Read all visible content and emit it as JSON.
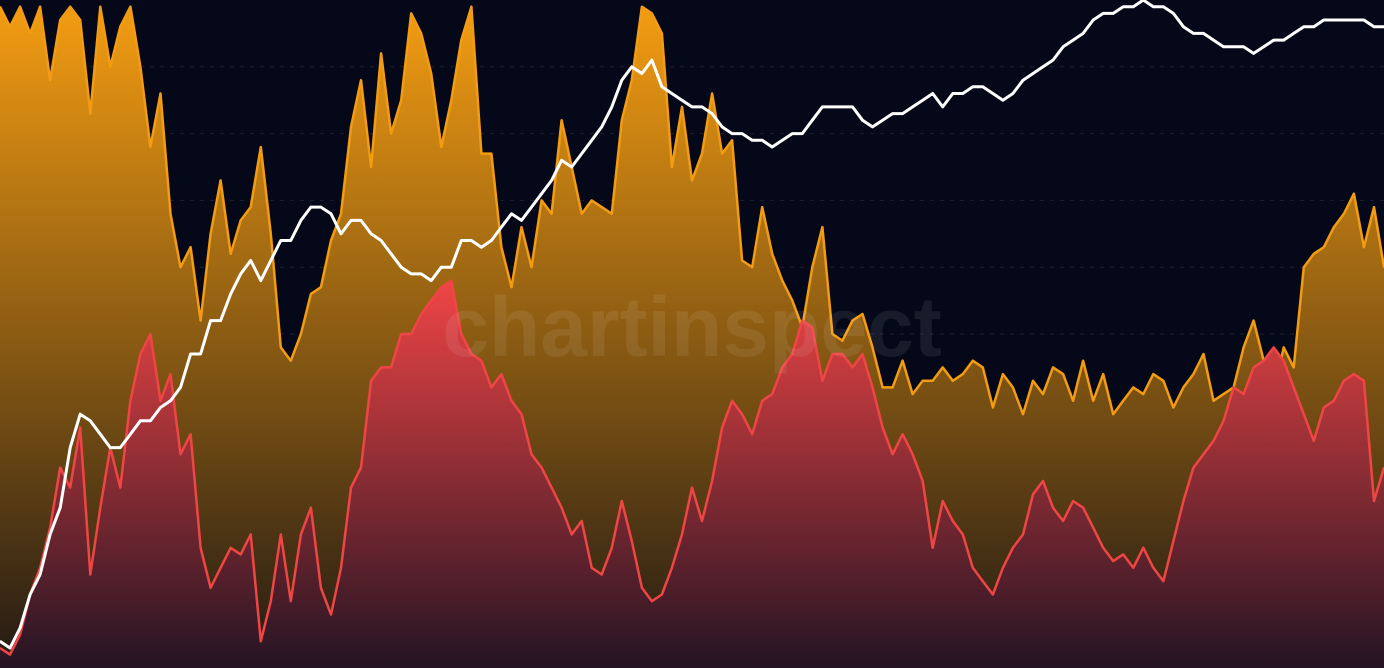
{
  "watermark": "chartinspect",
  "chart_data": {
    "type": "area",
    "title": "",
    "xlabel": "",
    "ylabel": "",
    "x": [
      0,
      10,
      20,
      30,
      40,
      50,
      60,
      70,
      80,
      90,
      100,
      110,
      120,
      130,
      140,
      150,
      160,
      170,
      180,
      190,
      200,
      210,
      220,
      230,
      240,
      250,
      260,
      270,
      280,
      290,
      300,
      310,
      320,
      330,
      340,
      350,
      360,
      370,
      380,
      390,
      400,
      410,
      420,
      430,
      440,
      450,
      460,
      470,
      480,
      490,
      500,
      510,
      520,
      530,
      540,
      550,
      560,
      570,
      580,
      590,
      600,
      610,
      620,
      630,
      640,
      650,
      660,
      670,
      680,
      690,
      700,
      710,
      720,
      730,
      740,
      750,
      760,
      770,
      780,
      790,
      800,
      810,
      820,
      830,
      840,
      850,
      860,
      870,
      880,
      890,
      900,
      910,
      920,
      930,
      940,
      950,
      960,
      970,
      980,
      990,
      1000,
      1010,
      1020,
      1030,
      1040,
      1050,
      1060,
      1070,
      1080,
      1090,
      1100,
      1110,
      1120,
      1130,
      1140,
      1150,
      1160,
      1170,
      1180,
      1190,
      1200,
      1210,
      1220,
      1230,
      1240,
      1250,
      1260,
      1270,
      1280,
      1290,
      1300,
      1310,
      1320,
      1330,
      1340,
      1350,
      1360,
      1370,
      1380
    ],
    "ylim": [
      0,
      100
    ],
    "grid": true,
    "legend": "none",
    "series": [
      {
        "color": "#f39c12",
        "fill_top": "#f39c12",
        "fill_bottom": "#221a14",
        "values": [
          99,
          96,
          99,
          95,
          99,
          88,
          97,
          99,
          97,
          83,
          99,
          90,
          96,
          99,
          90,
          78,
          86,
          68,
          60,
          63,
          52,
          65,
          73,
          62,
          67,
          69,
          78,
          65,
          48,
          46,
          50,
          56,
          57,
          64,
          68,
          81,
          88,
          75,
          92,
          80,
          85,
          98,
          95,
          89,
          78,
          85,
          94,
          99,
          77,
          77,
          63,
          57,
          66,
          60,
          70,
          68,
          82,
          75,
          68,
          70,
          69,
          68,
          82,
          88,
          99,
          98,
          95,
          75,
          84,
          73,
          77,
          86,
          77,
          79,
          61,
          60,
          69,
          62,
          58,
          55,
          51,
          60,
          66,
          50,
          49,
          52,
          53,
          48,
          42,
          42,
          46,
          41,
          43,
          43,
          45,
          43,
          44,
          46,
          45,
          39,
          44,
          42,
          38,
          43,
          41,
          45,
          44,
          40,
          46,
          40,
          44,
          38,
          40,
          42,
          41,
          44,
          43,
          39,
          42,
          44,
          47,
          40,
          41,
          42,
          48,
          52,
          46,
          41,
          48,
          45,
          60,
          62,
          63,
          66,
          68,
          71,
          63,
          69,
          60
        ]
      },
      {
        "color": "#f04545",
        "fill_top": "#f04545",
        "fill_bottom": "#241423",
        "values": [
          3,
          2,
          5,
          11,
          15,
          21,
          30,
          27,
          36,
          14,
          24,
          33,
          27,
          40,
          47,
          50,
          40,
          44,
          32,
          35,
          18,
          12,
          15,
          18,
          17,
          20,
          4,
          10,
          20,
          10,
          20,
          24,
          12,
          8,
          15,
          27,
          30,
          43,
          45,
          45,
          50,
          50,
          53,
          55,
          57,
          58,
          50,
          47,
          46,
          42,
          44,
          40,
          38,
          32,
          30,
          27,
          24,
          20,
          22,
          15,
          14,
          18,
          25,
          19,
          12,
          10,
          11,
          15,
          20,
          27,
          22,
          28,
          36,
          40,
          38,
          35,
          40,
          41,
          45,
          47,
          52,
          51,
          43,
          47,
          47,
          45,
          47,
          42,
          36,
          32,
          35,
          32,
          28,
          18,
          25,
          22,
          20,
          15,
          13,
          11,
          15,
          18,
          20,
          26,
          28,
          24,
          22,
          25,
          24,
          21,
          18,
          16,
          17,
          15,
          18,
          15,
          13,
          19,
          25,
          30,
          32,
          34,
          37,
          42,
          41,
          45,
          46,
          48,
          46,
          42,
          38,
          34,
          39,
          40,
          43,
          44,
          43,
          25,
          30
        ]
      },
      {
        "color": "#ffffff",
        "values": [
          4,
          3,
          6,
          11,
          14,
          20,
          24,
          33,
          38,
          37,
          35,
          33,
          33,
          35,
          37,
          37,
          39,
          40,
          42,
          47,
          47,
          52,
          52,
          56,
          59,
          61,
          58,
          61,
          64,
          64,
          67,
          69,
          69,
          68,
          65,
          67,
          67,
          65,
          64,
          62,
          60,
          59,
          59,
          58,
          60,
          60,
          64,
          64,
          63,
          64,
          66,
          68,
          67,
          69,
          71,
          73,
          76,
          75,
          77,
          79,
          81,
          84,
          88,
          90,
          89,
          91,
          87,
          86,
          85,
          84,
          84,
          83,
          81,
          80,
          80,
          79,
          79,
          78,
          79,
          80,
          80,
          82,
          84,
          84,
          84,
          84,
          82,
          81,
          82,
          83,
          83,
          84,
          85,
          86,
          84,
          86,
          86,
          87,
          87,
          86,
          85,
          86,
          88,
          89,
          90,
          91,
          93,
          94,
          95,
          97,
          98,
          98,
          99,
          99,
          100,
          99,
          99,
          98,
          96,
          95,
          95,
          94,
          93,
          93,
          93,
          92,
          93,
          94,
          94,
          95,
          96,
          96,
          97,
          97,
          97,
          97,
          97,
          96,
          96
        ]
      }
    ]
  }
}
